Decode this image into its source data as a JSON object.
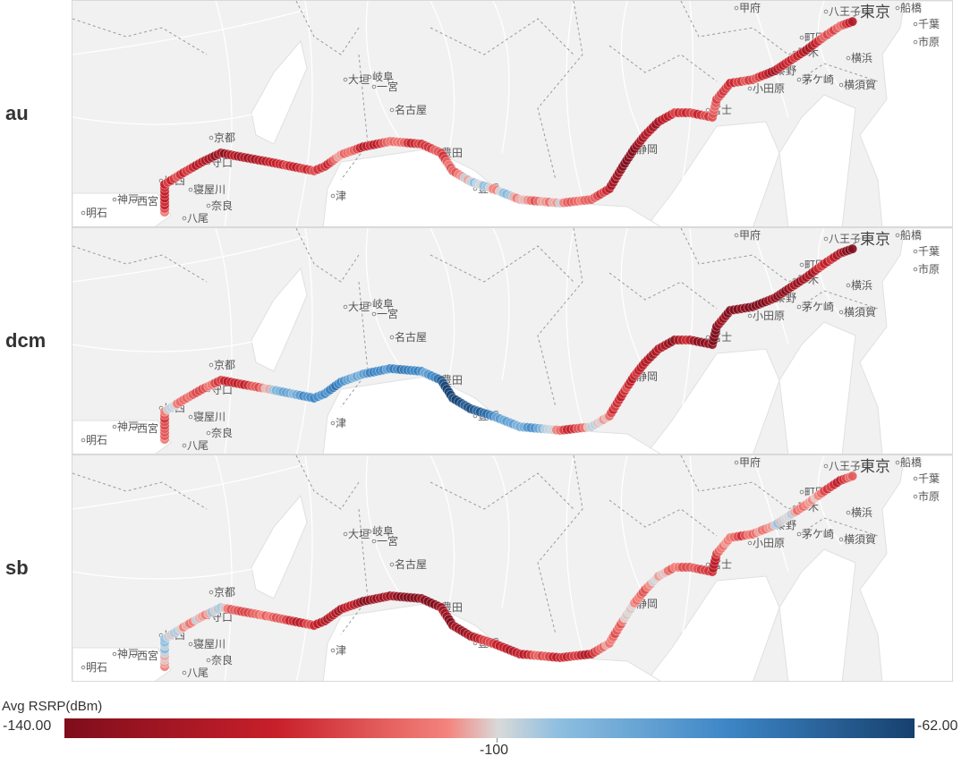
{
  "rows": [
    {
      "carrier": "au",
      "seed": 11
    },
    {
      "carrier": "dcm",
      "seed": 23
    },
    {
      "carrier": "sb",
      "seed": 37
    }
  ],
  "map_labels": [
    "甲府",
    "八王子",
    "東京",
    "船橋",
    "千葉",
    "町田",
    "市原",
    "厚木",
    "横浜",
    "秦野",
    "茅ケ崎",
    "横須賀",
    "小田原",
    "富士",
    "静岡",
    "豊田",
    "名古屋",
    "岐阜",
    "大垣",
    "一宮",
    "京都",
    "守口",
    "寝屋川",
    "奈良",
    "八尾",
    "川西",
    "西宮",
    "神戸",
    "明石",
    "津",
    "豊橋"
  ],
  "legend": {
    "title": "Avg RSRP(dBm)",
    "min_label": "-140.00",
    "max_label": "-62.00",
    "mid_label": "-100",
    "min": -140,
    "max": -62,
    "colors": [
      "#7f0d1c",
      "#c8202a",
      "#f4837c",
      "#d9d9d9",
      "#8fbfe0",
      "#3d86c6",
      "#17406e"
    ]
  }
}
